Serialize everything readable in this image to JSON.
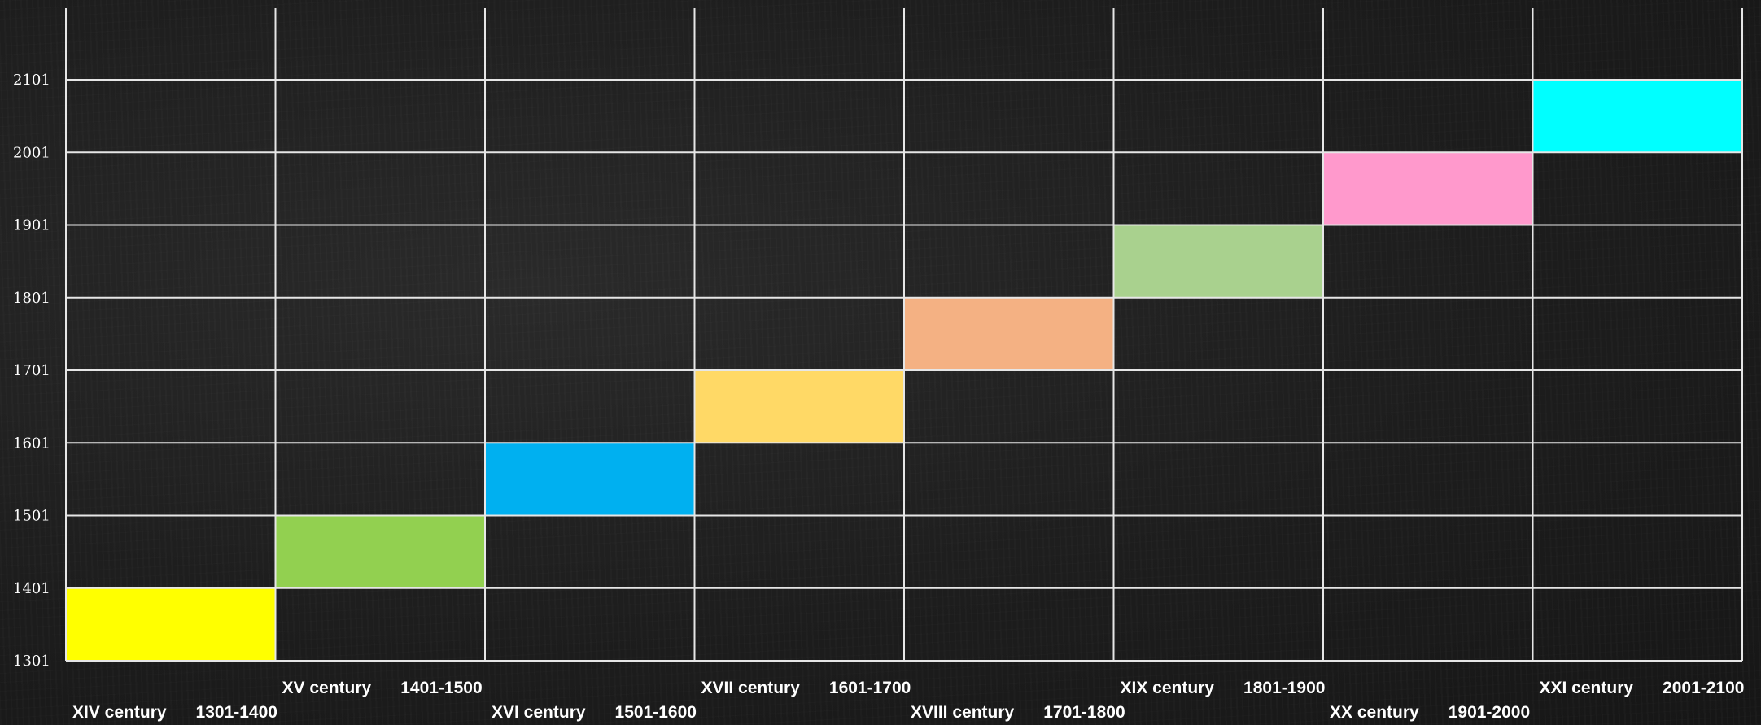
{
  "chart_data": {
    "type": "bar",
    "title": "",
    "xlabel": "",
    "ylabel": "",
    "grid": true,
    "ylim": [
      1301,
      2101
    ],
    "y_ticks": [
      "1301",
      "1401",
      "1501",
      "1601",
      "1701",
      "1801",
      "1901",
      "2001",
      "2101"
    ],
    "categories": [
      {
        "name": "XIV century",
        "range": "1301-1400",
        "start": 1301,
        "end": 1401,
        "color": "#ffff00"
      },
      {
        "name": "XV century",
        "range": "1401-1500",
        "start": 1401,
        "end": 1501,
        "color": "#92d050"
      },
      {
        "name": "XVI century",
        "range": "1501-1600",
        "start": 1501,
        "end": 1601,
        "color": "#00b0f0"
      },
      {
        "name": "XVII century",
        "range": "1601-1700",
        "start": 1601,
        "end": 1701,
        "color": "#ffd966"
      },
      {
        "name": "XVIII century",
        "range": "1701-1800",
        "start": 1701,
        "end": 1801,
        "color": "#f4b183"
      },
      {
        "name": "XIX century",
        "range": "1801-1900",
        "start": 1801,
        "end": 1901,
        "color": "#a9d18e"
      },
      {
        "name": "XX century",
        "range": "1901-2000",
        "start": 1901,
        "end": 2001,
        "color": "#ff99cc"
      },
      {
        "name": "XXI century",
        "range": "2001-2100",
        "start": 2001,
        "end": 2101,
        "color": "#00ffff"
      }
    ]
  }
}
